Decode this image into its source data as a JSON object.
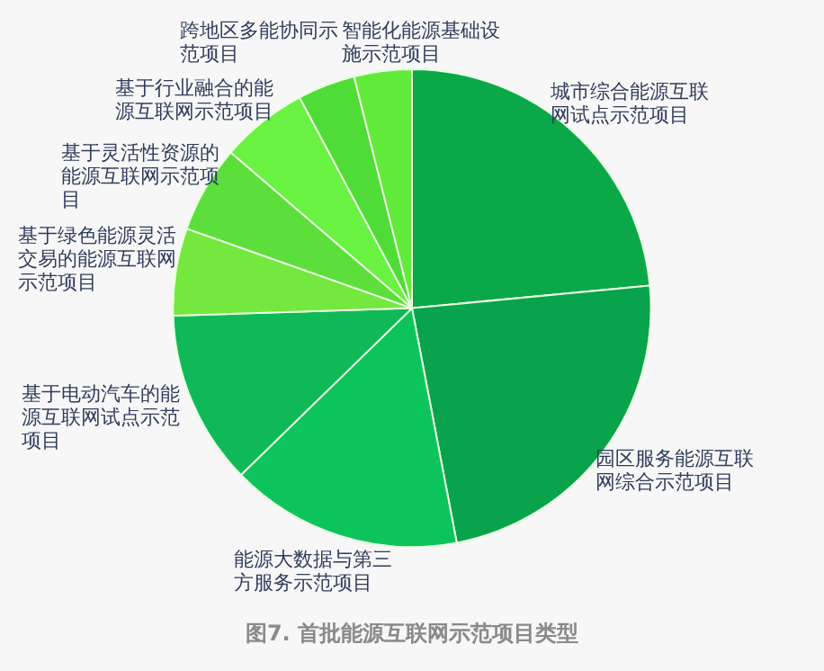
{
  "chart_data": {
    "type": "pie",
    "title": "图7. 首批能源互联网示范项目类型",
    "categories": [
      "城市综合能源互联网试点示范项目",
      "园区服务能源互联网综合示范项目",
      "能源大数据与第三方服务示范项目",
      "基于电动汽车的能源互联网试点示范项目",
      "基于绿色能源灵活交易的能源互联网示范项目",
      "基于灵活性资源的能源互联网示范项目",
      "基于行业融合的能源互联网示范项目",
      "跨地区多能协同示范项目",
      "智能化能源基础设施示范项目"
    ],
    "values": [
      23.5,
      23.5,
      15.7,
      11.8,
      5.9,
      5.9,
      5.9,
      3.9,
      3.9
    ],
    "colors": [
      "#0ba84a",
      "#08a34a",
      "#0dc45c",
      "#10b957",
      "#74e83e",
      "#5cdf3a",
      "#6af242",
      "#50dc36",
      "#62ea3a"
    ],
    "legend": false
  }
}
